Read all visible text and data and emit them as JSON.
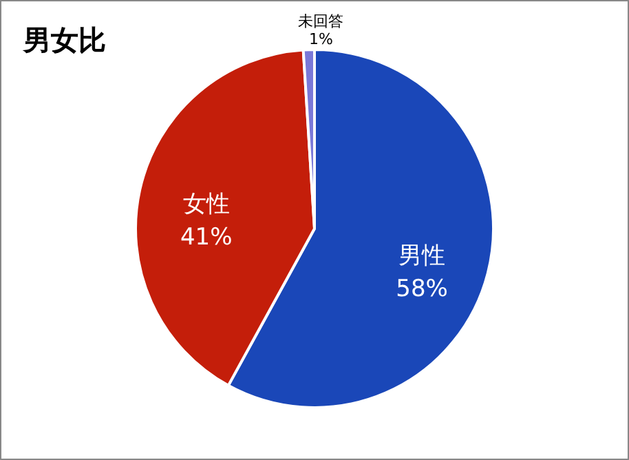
{
  "chart_data": {
    "type": "pie",
    "title": "男女比",
    "categories": [
      "男性",
      "女性",
      "未回答"
    ],
    "values": [
      58,
      41,
      1
    ],
    "colors": [
      "#1a47b8",
      "#c41e0a",
      "#7a78d8"
    ],
    "value_labels": [
      "58%",
      "41%",
      "1%"
    ]
  }
}
